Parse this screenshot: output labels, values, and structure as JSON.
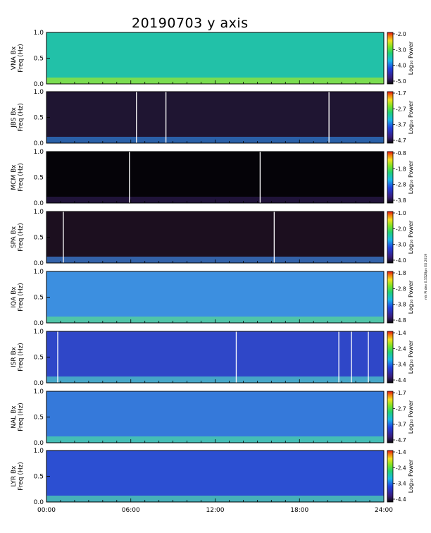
{
  "chart_data": {
    "type": "heatmap",
    "title": "20190703 y axis",
    "stamp": "mk PI dev 0.5528pv EX 2019",
    "x_ticks": [
      "00:00",
      "06:00",
      "12:00",
      "18:00",
      "24:00"
    ],
    "xlim": [
      0,
      24
    ],
    "panels": [
      {
        "station": "VNA Bx",
        "ylabel": "Freq (Hz)",
        "yticks": [
          "0.0",
          "0.5",
          "1.0"
        ],
        "ylim": [
          0,
          1.0
        ],
        "colorbar_label": "Log₁₀ Power",
        "cb_ticks": [
          "-2.0",
          "-3.0",
          "-4.0",
          "-5.0"
        ],
        "background": "#22c1a8",
        "low_band": "#9ae634",
        "bright_lines_h": []
      },
      {
        "station": "JBS Bx",
        "ylabel": "Freq (Hz)",
        "yticks": [
          "0.0",
          "0.5",
          "1.0"
        ],
        "ylim": [
          0,
          1.0
        ],
        "colorbar_label": "Log₁₀ Power",
        "cb_ticks": [
          "-1.7",
          "-2.7",
          "-3.7",
          "-4.7"
        ],
        "background": "#1f1532",
        "low_band": "#2f7ad0",
        "bright_lines_h": [
          6.4,
          8.5,
          20.1
        ]
      },
      {
        "station": "MCM Bx",
        "ylabel": "Freq (Hz)",
        "yticks": [
          "0.0",
          "0.5",
          "1.0"
        ],
        "ylim": [
          0,
          1.0
        ],
        "colorbar_label": "Log₁₀ Power",
        "cb_ticks": [
          "-0.8",
          "-1.8",
          "-2.8",
          "-3.8"
        ],
        "background": "#050308",
        "low_band": "#2a1a4a",
        "bright_lines_h": [
          5.9,
          15.2
        ]
      },
      {
        "station": "SPA Bx",
        "ylabel": "Freq (Hz)",
        "yticks": [
          "0.0",
          "0.5",
          "1.0"
        ],
        "ylim": [
          0,
          1.0
        ],
        "colorbar_label": "Log₁₀ Power",
        "cb_ticks": [
          "-1.0",
          "-2.0",
          "-3.0",
          "-4.0"
        ],
        "background": "#1c0f1f",
        "low_band": "#3b7fd8",
        "bright_lines_h": [
          1.2,
          16.2
        ]
      },
      {
        "station": "IQA Bx",
        "ylabel": "Freq (Hz)",
        "yticks": [
          "0.0",
          "0.5",
          "1.0"
        ],
        "ylim": [
          0,
          1.0
        ],
        "colorbar_label": "Log₁₀ Power",
        "cb_ticks": [
          "-1.8",
          "-2.8",
          "-3.8",
          "-4.8"
        ],
        "background": "#3c8fe0",
        "low_band": "#57d596",
        "bright_lines_h": []
      },
      {
        "station": "ISR Bx",
        "ylabel": "Freq (Hz)",
        "yticks": [
          "0.0",
          "0.5",
          "1.0"
        ],
        "ylim": [
          0,
          1.0
        ],
        "colorbar_label": "Log₁₀ Power",
        "cb_ticks": [
          "-1.4",
          "-2.4",
          "-3.4",
          "-4.4"
        ],
        "background": "#2f47c8",
        "low_band": "#4fc6c8",
        "bright_lines_h": [
          0.8,
          13.5,
          20.8,
          21.7,
          22.9
        ]
      },
      {
        "station": "NAL Bx",
        "ylabel": "Freq (Hz)",
        "yticks": [
          "0.0",
          "0.5",
          "1.0"
        ],
        "ylim": [
          0,
          1.0
        ],
        "colorbar_label": "Log₁₀ Power",
        "cb_ticks": [
          "-1.7",
          "-2.7",
          "-3.7",
          "-4.7"
        ],
        "background": "#3579da",
        "low_band": "#4ad4a8",
        "bright_lines_h": []
      },
      {
        "station": "LYR Bx",
        "ylabel": "Freq (Hz)",
        "yticks": [
          "0.0",
          "0.5",
          "1.0"
        ],
        "ylim": [
          0,
          1.0
        ],
        "colorbar_label": "Log₁₀ Power",
        "cb_ticks": [
          "-1.4",
          "-2.4",
          "-3.4",
          "-4.4"
        ],
        "background": "#2c4fd2",
        "low_band": "#4fd0b0",
        "bright_lines_h": []
      }
    ]
  }
}
